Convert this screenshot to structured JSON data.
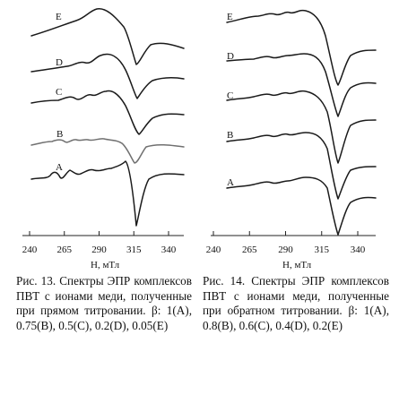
{
  "figures": [
    {
      "id": "fig13",
      "xlabel": "H, мТл",
      "ticks": [
        240,
        265,
        290,
        315,
        340
      ],
      "curve_labels": [
        "E",
        "D",
        "C",
        "B",
        "A"
      ],
      "caption_label": "Рис. 13.",
      "caption_text": "Спектры ЭПР комплексов ПВТ с ионами меди, полученные при прямом титровании. β: 1(A), 0.75(B), 0.5(C), 0.2(D), 0.05(E)"
    },
    {
      "id": "fig14",
      "xlabel": "H, мТл",
      "ticks": [
        240,
        265,
        290,
        315,
        340
      ],
      "curve_labels": [
        "E",
        "D",
        "C",
        "B",
        "A"
      ],
      "caption_label": "Рис. 14.",
      "caption_text": "Спектры ЭПР комплексов ПВТ с ионами меди, полученные при обратном титровании. β: 1(A), 0.8(B), 0.6(C), 0.4(D), 0.2(E)"
    }
  ]
}
